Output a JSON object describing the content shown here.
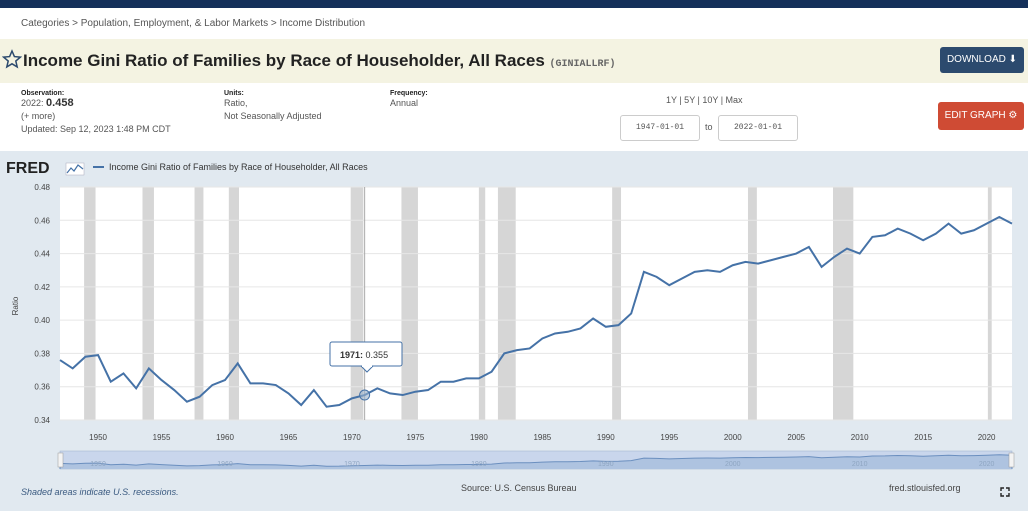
{
  "breadcrumb": "Categories > Population, Employment, & Labor Markets > Income Distribution",
  "title": "Income Gini Ratio of Families by Race of Householder, All Races",
  "series_id": "(GINIALLRF)",
  "download_label": "DOWNLOAD",
  "edit_graph_label": "EDIT GRAPH",
  "observation": {
    "label": "Observation:",
    "date": "2022:",
    "value": "0.458",
    "more": "(+ more)",
    "updated": "Updated: Sep 12, 2023 1:48 PM CDT"
  },
  "units": {
    "label": "Units:",
    "line1": "Ratio,",
    "line2": "Not Seasonally Adjusted"
  },
  "frequency": {
    "label": "Frequency:",
    "value": "Annual"
  },
  "range_links": "1Y | 5Y | 10Y | Max",
  "date_start": "1947-01-01",
  "date_to": "to",
  "date_end": "2022-01-01",
  "fred_logo": "FRED",
  "colors": {
    "line": "#4572a7",
    "recession": "#d6d6d6",
    "panel": "#e1e9f0",
    "plot_bg": "#ffffff",
    "download": "#2c4a6e",
    "edit": "#cf4b34"
  },
  "tooltip": {
    "year_label": "1971:",
    "value_label": "0.355"
  },
  "footer": {
    "note": "Shaded areas indicate U.S. recessions.",
    "source": "Source: U.S. Census Bureau",
    "site": "fred.stlouisfed.org"
  },
  "chart_data": {
    "type": "line",
    "title": "Income Gini Ratio of Families by Race of Householder, All Races",
    "legend": "Income Gini Ratio of Families by Race of Householder, All Races",
    "ylabel": "Ratio",
    "xlabel": "",
    "ylim": [
      0.34,
      0.48
    ],
    "xlim": [
      1947,
      2022
    ],
    "yticks": [
      "0.34",
      "0.36",
      "0.38",
      "0.40",
      "0.42",
      "0.44",
      "0.46",
      "0.48"
    ],
    "xticks": [
      "1950",
      "1955",
      "1960",
      "1965",
      "1970",
      "1975",
      "1980",
      "1985",
      "1990",
      "1995",
      "2000",
      "2005",
      "2010",
      "2015",
      "2020"
    ],
    "navigator_ticks": [
      "1950",
      "1960",
      "1970",
      "1980",
      "1990",
      "2000",
      "2010",
      "2020"
    ],
    "recessions": [
      [
        1948.9,
        1949.8
      ],
      [
        1953.5,
        1954.4
      ],
      [
        1957.6,
        1958.3
      ],
      [
        1960.3,
        1961.1
      ],
      [
        1969.9,
        1970.9
      ],
      [
        1973.9,
        1975.2
      ],
      [
        1980.0,
        1980.5
      ],
      [
        1981.5,
        1982.9
      ],
      [
        1990.5,
        1991.2
      ],
      [
        2001.2,
        2001.9
      ],
      [
        2007.9,
        2009.5
      ],
      [
        2020.1,
        2020.4
      ]
    ],
    "x": [
      1947,
      1948,
      1949,
      1950,
      1951,
      1952,
      1953,
      1954,
      1955,
      1956,
      1957,
      1958,
      1959,
      1960,
      1961,
      1962,
      1963,
      1964,
      1965,
      1966,
      1967,
      1968,
      1969,
      1970,
      1971,
      1972,
      1973,
      1974,
      1975,
      1976,
      1977,
      1978,
      1979,
      1980,
      1981,
      1982,
      1983,
      1984,
      1985,
      1986,
      1987,
      1988,
      1989,
      1990,
      1991,
      1992,
      1993,
      1994,
      1995,
      1996,
      1997,
      1998,
      1999,
      2000,
      2001,
      2002,
      2003,
      2004,
      2005,
      2006,
      2007,
      2008,
      2009,
      2010,
      2011,
      2012,
      2013,
      2014,
      2015,
      2016,
      2017,
      2018,
      2019,
      2020,
      2021,
      2022
    ],
    "values": [
      0.376,
      0.371,
      0.378,
      0.379,
      0.363,
      0.368,
      0.359,
      0.371,
      0.364,
      0.358,
      0.351,
      0.354,
      0.361,
      0.364,
      0.374,
      0.362,
      0.362,
      0.361,
      0.356,
      0.349,
      0.358,
      0.348,
      0.349,
      0.353,
      0.355,
      0.359,
      0.356,
      0.355,
      0.357,
      0.358,
      0.363,
      0.363,
      0.365,
      0.365,
      0.369,
      0.38,
      0.382,
      0.383,
      0.389,
      0.392,
      0.393,
      0.395,
      0.401,
      0.396,
      0.397,
      0.404,
      0.429,
      0.426,
      0.421,
      0.425,
      0.429,
      0.43,
      0.429,
      0.433,
      0.435,
      0.434,
      0.436,
      0.438,
      0.44,
      0.444,
      0.432,
      0.438,
      0.443,
      0.44,
      0.45,
      0.451,
      0.455,
      0.452,
      0.448,
      0.452,
      0.458,
      0.452,
      0.454,
      0.458,
      0.462,
      0.458
    ]
  }
}
